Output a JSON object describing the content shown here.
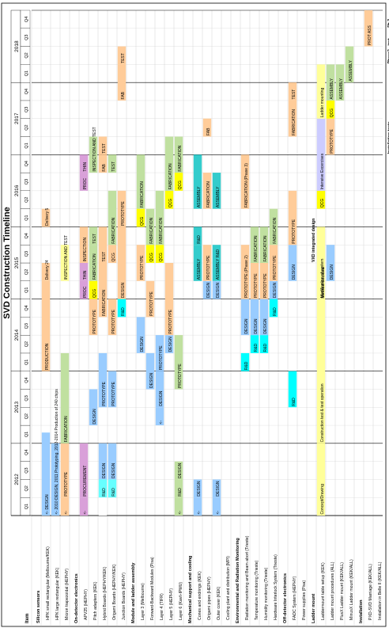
{
  "chart_data": {
    "type": "gantt",
    "title": "SVD Construction Timeline",
    "item_header": "Item",
    "years": [
      "2012",
      "2013",
      "2014",
      "2015",
      "2016",
      "2017",
      "2018"
    ],
    "quarter_labels": [
      "Q1",
      "Q2",
      "Q3",
      "Q4"
    ],
    "x_unit": "quarter index (0 = 2012 Q1)",
    "x_range": [
      0,
      28
    ],
    "rows": [
      {
        "label": "Silicon sensors",
        "section": true
      },
      {
        "label": "HPK small rectangular (Melbourne/KEK)",
        "bars": [
          {
            "start": 0,
            "end": 4.6,
            "color": "#99ccff",
            "text": "<- DESIGN"
          },
          {
            "start": 8,
            "end": 13,
            "color": "#ffcc99",
            "text": "PRODUCTION"
          },
          {
            "start": 13,
            "end": 14,
            "color": "#ffcc99",
            "text": "Delivery 24"
          },
          {
            "start": 16,
            "end": 17,
            "color": "#ffcc99",
            "text": "Delivery 5"
          }
        ]
      },
      {
        "label": "HPK large rectangular (KEK)",
        "bars": [
          {
            "start": 0,
            "end": 4,
            "color": "#99ccff",
            "text": "<- 2010 DESIGN, 2011 Prototyping, 2012-2014 Production of 240 chips"
          }
        ]
      },
      {
        "label": "Micron trapezoidal (HEPHY)",
        "bars": [
          {
            "start": 0,
            "end": 1,
            "color": "#ffcc99",
            "text": "<-"
          },
          {
            "start": 1,
            "end": 4,
            "color": "#ffcc99",
            "text": "PROTOTYPE"
          },
          {
            "start": 4,
            "end": 9,
            "color": "#c0e0a0",
            "text": "FABRICATION"
          },
          {
            "start": 13,
            "end": 15,
            "color": "#ffff99",
            "text": "INSPECTION AND TEST"
          }
        ]
      },
      {
        "label": "On-detector electronics",
        "section": true
      },
      {
        "label": "APV25 (HEPHY)",
        "bars": [
          {
            "start": 0,
            "end": 1,
            "color": "#d9a0d9",
            "text": "<-"
          },
          {
            "start": 1,
            "end": 4,
            "color": "#d9a0d9",
            "text": "PROCUREMENT"
          },
          {
            "start": 12,
            "end": 13,
            "color": "#d9a0d9",
            "text": "PROC"
          },
          {
            "start": 13,
            "end": 14,
            "color": "#d9a0d9",
            "text": "THIN"
          },
          {
            "start": 14,
            "end": 16,
            "color": "#ffcc99",
            "text": "INSPECTION"
          },
          {
            "start": 18,
            "end": 19,
            "color": "#d9a0d9",
            "text": "PROC"
          },
          {
            "start": 19,
            "end": 20,
            "color": "#d9a0d9",
            "text": "THIN"
          }
        ]
      },
      {
        "label": "Pitch adapters (KEK)",
        "bars": [
          {
            "start": 5,
            "end": 7,
            "color": "#99ccff",
            "text": "DESIGN"
          },
          {
            "start": 10,
            "end": 12,
            "color": "#ffcc99",
            "text": "PROTOTYPE"
          },
          {
            "start": 12,
            "end": 13,
            "color": "#ffff00",
            "text": "QCG"
          },
          {
            "start": 13,
            "end": 15,
            "color": "#c0e0a0",
            "text": "FABRICATION"
          },
          {
            "start": 15,
            "end": 16,
            "color": "#c0e0a0",
            "text": "TEST"
          },
          {
            "start": 19,
            "end": 21,
            "color": "#c0e0a0",
            "text": "INSPECTION AND TEST"
          }
        ]
      },
      {
        "label": "Hybrid Boards (HEPHY/KEK)",
        "bars": [
          {
            "start": 0,
            "end": 1,
            "color": "#ffffff",
            "text": ""
          },
          {
            "start": 1,
            "end": 2,
            "color": "#66ffff",
            "text": "R&D"
          },
          {
            "start": 2,
            "end": 4,
            "color": "#99ccff",
            "text": "DESIGN"
          },
          {
            "start": 6,
            "end": 9,
            "color": "#99ccff",
            "text": "PROTOTYPE"
          },
          {
            "start": 11,
            "end": 14,
            "color": "#ffcc99",
            "text": "FABRICATION"
          },
          {
            "start": 14,
            "end": 16,
            "color": "#ffcc99",
            "text": "TEST"
          },
          {
            "start": 19,
            "end": 20,
            "color": "#ffcc99",
            "text": "FAB"
          },
          {
            "start": 20,
            "end": 21,
            "color": "#ffcc99",
            "text": "TEST"
          }
        ]
      },
      {
        "label": "Origami Boards (HEPHY/KEK)",
        "bars": [
          {
            "start": 1,
            "end": 2,
            "color": "#66ffff",
            "text": "R&D"
          },
          {
            "start": 2,
            "end": 4,
            "color": "#99ccff",
            "text": "DESIGN"
          },
          {
            "start": 6,
            "end": 8,
            "color": "#99ccff",
            "text": "PROTOTYPE"
          },
          {
            "start": 10,
            "end": 12,
            "color": "#ffcc99",
            "text": "PROTOTYPE"
          },
          {
            "start": 14,
            "end": 15,
            "color": "#ffcc99",
            "text": "QCG"
          },
          {
            "start": 15,
            "end": 18,
            "color": "#c0e0a0",
            "text": "FABRICATION"
          },
          {
            "start": 19,
            "end": 20,
            "color": "#c0e0a0",
            "text": "TEST"
          }
        ]
      },
      {
        "label": "Junction Boards (HEPHY)",
        "bars": [
          {
            "start": 11,
            "end": 12,
            "color": "#00ffff",
            "text": "R&D"
          },
          {
            "start": 12,
            "end": 16,
            "color": "#ffcc99",
            "text": "DESIGN"
          },
          {
            "start": 16,
            "end": 18,
            "color": "#ffcc99",
            "text": "PROTOTYPE"
          },
          {
            "start": 23,
            "end": 25,
            "color": "#ffcc99",
            "text": "FAB"
          },
          {
            "start": 25,
            "end": 26,
            "color": "#ffcc99",
            "text": "TEST"
          }
        ]
      },
      {
        "label": "Module and ladder assembly",
        "section": true
      },
      {
        "label": "Layer 3 (Melbourne)",
        "bars": [
          {
            "start": 9,
            "end": 11,
            "color": "#99ccff",
            "text": "DESIGN"
          },
          {
            "start": 13,
            "end": 15,
            "color": "#ffcc99",
            "text": "PROTOTYPE"
          },
          {
            "start": 16,
            "end": 17,
            "color": "#ffff00",
            "text": "QCG"
          },
          {
            "start": 17,
            "end": 20,
            "color": "#c0e0a0",
            "text": "FABRICATION"
          }
        ]
      },
      {
        "label": "Forward-Backward Modules (Pisa)",
        "bars": [
          {
            "start": 7,
            "end": 9,
            "color": "#99ccff",
            "text": "DESIGN"
          },
          {
            "start": 11,
            "end": 13,
            "color": "#ffcc99",
            "text": "PROTOTYPE"
          },
          {
            "start": 14,
            "end": 15,
            "color": "#ffff00",
            "text": "QCG"
          },
          {
            "start": 15,
            "end": 17,
            "color": "#c0e0a0",
            "text": "FABRICATION"
          }
        ]
      },
      {
        "label": "Layer 4 (TIFR)",
        "bars": [
          {
            "start": 5,
            "end": 6,
            "color": "#99ccff",
            "text": "<-"
          },
          {
            "start": 6,
            "end": 8,
            "color": "#99ccff",
            "text": "DESIGN"
          },
          {
            "start": 8,
            "end": 10,
            "color": "#99ccff",
            "text": "PROTOTYPE"
          },
          {
            "start": 14,
            "end": 15,
            "color": "#ffff00",
            "text": "QCG"
          },
          {
            "start": 15,
            "end": 18,
            "color": "#c0e0a0",
            "text": "FABRICATION"
          }
        ]
      },
      {
        "label": "Layer 5 (HEPHY)",
        "bars": [
          {
            "start": 9,
            "end": 10,
            "color": "#99ccff",
            "text": "DESIGN"
          },
          {
            "start": 10,
            "end": 14,
            "color": "#ffcc99",
            "text": "PROTOTYPE"
          },
          {
            "start": 17,
            "end": 18,
            "color": "#ffff00",
            "text": "QCG"
          },
          {
            "start": 18,
            "end": 21,
            "color": "#c0e0a0",
            "text": "FABRICATION"
          }
        ]
      },
      {
        "label": "Layer 6 (Kavli-IPMU)",
        "bars": [
          {
            "start": 0,
            "end": 1,
            "color": "#c0e0a0",
            "text": "<-"
          },
          {
            "start": 1,
            "end": 2,
            "color": "#c0e0a0",
            "text": "R&D"
          },
          {
            "start": 2,
            "end": 3,
            "color": "#c0e0a0",
            "text": "DESIGN"
          },
          {
            "start": 7,
            "end": 10,
            "color": "#c0e0a0",
            "text": "PROTOTYPE"
          },
          {
            "start": 18,
            "end": 19,
            "color": "#ffff00",
            "text": "QCG"
          },
          {
            "start": 19,
            "end": 21,
            "color": "#c0e0a0",
            "text": "FABRICATION"
          }
        ]
      },
      {
        "label": "Mechanical support and cooling",
        "section": true
      },
      {
        "label": "Cones and endrings (KEK)",
        "bars": [
          {
            "start": 0,
            "end": 1,
            "color": "#99ccff",
            "text": "<-"
          },
          {
            "start": 1,
            "end": 2,
            "color": "#99ccff",
            "text": "DESIGN"
          },
          {
            "start": 13,
            "end": 15,
            "color": "#33cccc",
            "text": "ASSEMBLY"
          },
          {
            "start": 15,
            "end": 16,
            "color": "#33cccc",
            "text": "R&D"
          },
          {
            "start": 17,
            "end": 20,
            "color": "#33cccc",
            "text": "ASSEMBLY"
          }
        ]
      },
      {
        "label": "Origami pipes (HEPHY)",
        "bars": [
          {
            "start": 12,
            "end": 13,
            "color": "#99ccff",
            "text": "DESIGN"
          },
          {
            "start": 13,
            "end": 15,
            "color": "#ffcc99",
            "text": "PROTOTYPE"
          },
          {
            "start": 17,
            "end": 19,
            "color": "#ffcc99",
            "text": "FABRICATION"
          },
          {
            "start": 21,
            "end": 22,
            "color": "#ffcc99",
            "text": "FAB"
          }
        ]
      },
      {
        "label": "Outer cover (KEK)",
        "bars": [
          {
            "start": 0,
            "end": 1,
            "color": "#99ccff",
            "text": "<-"
          },
          {
            "start": 1,
            "end": 2,
            "color": "#99ccff",
            "text": "DESIGN"
          },
          {
            "start": 12,
            "end": 13,
            "color": "#99ccff",
            "text": "DESIGN"
          },
          {
            "start": 13,
            "end": 15,
            "color": "#33cccc",
            "text": "ASSEMBLY R&D"
          },
          {
            "start": 17,
            "end": 19,
            "color": "#33cccc",
            "text": "ASSEMBLY"
          }
        ]
      },
      {
        "label": "Cooling plant and distribution (MPI)",
        "bars": []
      },
      {
        "label": "Environmental and Radiation Monitoring",
        "section": true
      },
      {
        "label": "Radiation monitoring and Beam abort (Trieste)",
        "bars": [
          {
            "start": 8,
            "end": 9,
            "color": "#00ffff",
            "text": "R&D"
          },
          {
            "start": 10,
            "end": 12,
            "color": "#99ccff",
            "text": "DESIGN"
          },
          {
            "start": 12,
            "end": 15,
            "color": "#ffcc99",
            "text": "PROTOTYPE (Phase 2)"
          },
          {
            "start": 17,
            "end": 20,
            "color": "#ffcc99",
            "text": "FABRICATION (Phase 3)"
          }
        ]
      },
      {
        "label": "Temperature monitoring (Trieste)",
        "bars": [
          {
            "start": 9,
            "end": 10,
            "color": "#00ffff",
            "text": "R&D"
          },
          {
            "start": 10,
            "end": 12,
            "color": "#99ccff",
            "text": "DESIGN"
          },
          {
            "start": 12,
            "end": 14,
            "color": "#ffcc99",
            "text": "PROTOTYPE"
          },
          {
            "start": 14,
            "end": 16,
            "color": "#c0e0a0",
            "text": "FABRICATION"
          }
        ]
      },
      {
        "label": "Humidity monitoring (Trieste)",
        "bars": [
          {
            "start": 9,
            "end": 10,
            "color": "#00ffff",
            "text": "R&D"
          },
          {
            "start": 10,
            "end": 12,
            "color": "#99ccff",
            "text": "DESIGN"
          },
          {
            "start": 12,
            "end": 14,
            "color": "#ffcc99",
            "text": "PROTOTYPE"
          },
          {
            "start": 14,
            "end": 16,
            "color": "#c0e0a0",
            "text": "FABRICATION"
          }
        ]
      },
      {
        "label": "Hardware Interlock System (Trieste)",
        "bars": [
          {
            "start": 11,
            "end": 12,
            "color": "#00ffff",
            "text": "R&D"
          },
          {
            "start": 12,
            "end": 13,
            "color": "#99ccff",
            "text": "DESIGN"
          },
          {
            "start": 13,
            "end": 15,
            "color": "#ffcc99",
            "text": "PROTOTYPE"
          },
          {
            "start": 15,
            "end": 17,
            "color": "#c0e0a0",
            "text": "FABRICATION"
          }
        ]
      },
      {
        "label": "Off-detector electronics",
        "section": true
      },
      {
        "label": "FADC System (HEPHY)",
        "bars": [
          {
            "start": 6,
            "end": 8,
            "color": "#00ffff",
            "text": "R&D"
          },
          {
            "start": 13,
            "end": 15,
            "color": "#99ccff",
            "text": "DESIGN"
          },
          {
            "start": 15,
            "end": 18,
            "color": "#ffcc99",
            "text": "PROTOTYPE"
          },
          {
            "start": 21,
            "end": 23,
            "color": "#ffcc99",
            "text": "FABRICATION"
          },
          {
            "start": 23,
            "end": 24,
            "color": "#ffcc99",
            "text": "TEST"
          }
        ]
      },
      {
        "label": "Power supplies (Pisa)",
        "bars": []
      },
      {
        "label": "Ladder mount",
        "section": true
      },
      {
        "label": "Laddermount table setup (KEK)",
        "bars": [
          {
            "start": 0,
            "end": 4,
            "color": "#ffff99",
            "text": "Concept/Drawing"
          },
          {
            "start": 4,
            "end": 12,
            "color": "#ffff99",
            "text": "Construction test & test operation"
          },
          {
            "start": 12,
            "end": 16,
            "color": "#ffff99",
            "text": "Modification of system"
          },
          {
            "start": 17,
            "end": 18,
            "color": "#ffff00",
            "text": "QCG"
          },
          {
            "start": 18,
            "end": 22,
            "color": "#ccccff",
            "text": "Intensive Excercises"
          },
          {
            "start": 22,
            "end": 25,
            "color": "#ffff99",
            "text": "Ladder mounting"
          }
        ]
      },
      {
        "label": "Ladder mount procedures (ALL)",
        "bars": [
          {
            "start": 13,
            "end": 15,
            "color": "#99ccff",
            "text": "DESIGN"
          },
          {
            "start": 20,
            "end": 22,
            "color": "#ffcc99",
            "text": "PROTOTYPE"
          },
          {
            "start": 22,
            "end": 23,
            "color": "#ffff00",
            "text": "QCG"
          },
          {
            "start": 23,
            "end": 25,
            "color": "#c0e0a0",
            "text": "ASSEMBLY"
          }
        ]
      },
      {
        "label": "PlusX Ladder mount (KEK/ALL)",
        "bars": [
          {
            "start": 23,
            "end": 25,
            "color": "#c0e0a0",
            "text": "ASSEMBLY"
          }
        ]
      },
      {
        "label": "MinusX Ladder mount (KEK/ALL)",
        "bars": [
          {
            "start": 24,
            "end": 26,
            "color": "#c0e0a0",
            "text": "ASSEMBLY"
          }
        ]
      },
      {
        "label": "Installation",
        "section": true
      },
      {
        "label": "PXD-SVD Marriage (KEK/ALL)",
        "bars": [
          {
            "start": 26,
            "end": 28,
            "color": "#ffcc99",
            "text": "PROT ASS"
          }
        ]
      },
      {
        "label": "Installation in Belle II (KEK/ALL)",
        "bars": []
      }
    ],
    "annotations": [
      {
        "text": "Method decided",
        "row": 30,
        "at": 12
      },
      {
        "text": "VXD integrated design",
        "row": 29,
        "at": 14
      },
      {
        "text": "Installation tests",
        "row": 37,
        "at": 20
      },
      {
        "text": "Phase2",
        "row": 37,
        "at": 25
      },
      {
        "text": "inst.",
        "row": 37,
        "at": 26
      },
      {
        "text": "Ph 3",
        "row": 37,
        "at": 27
      }
    ]
  }
}
